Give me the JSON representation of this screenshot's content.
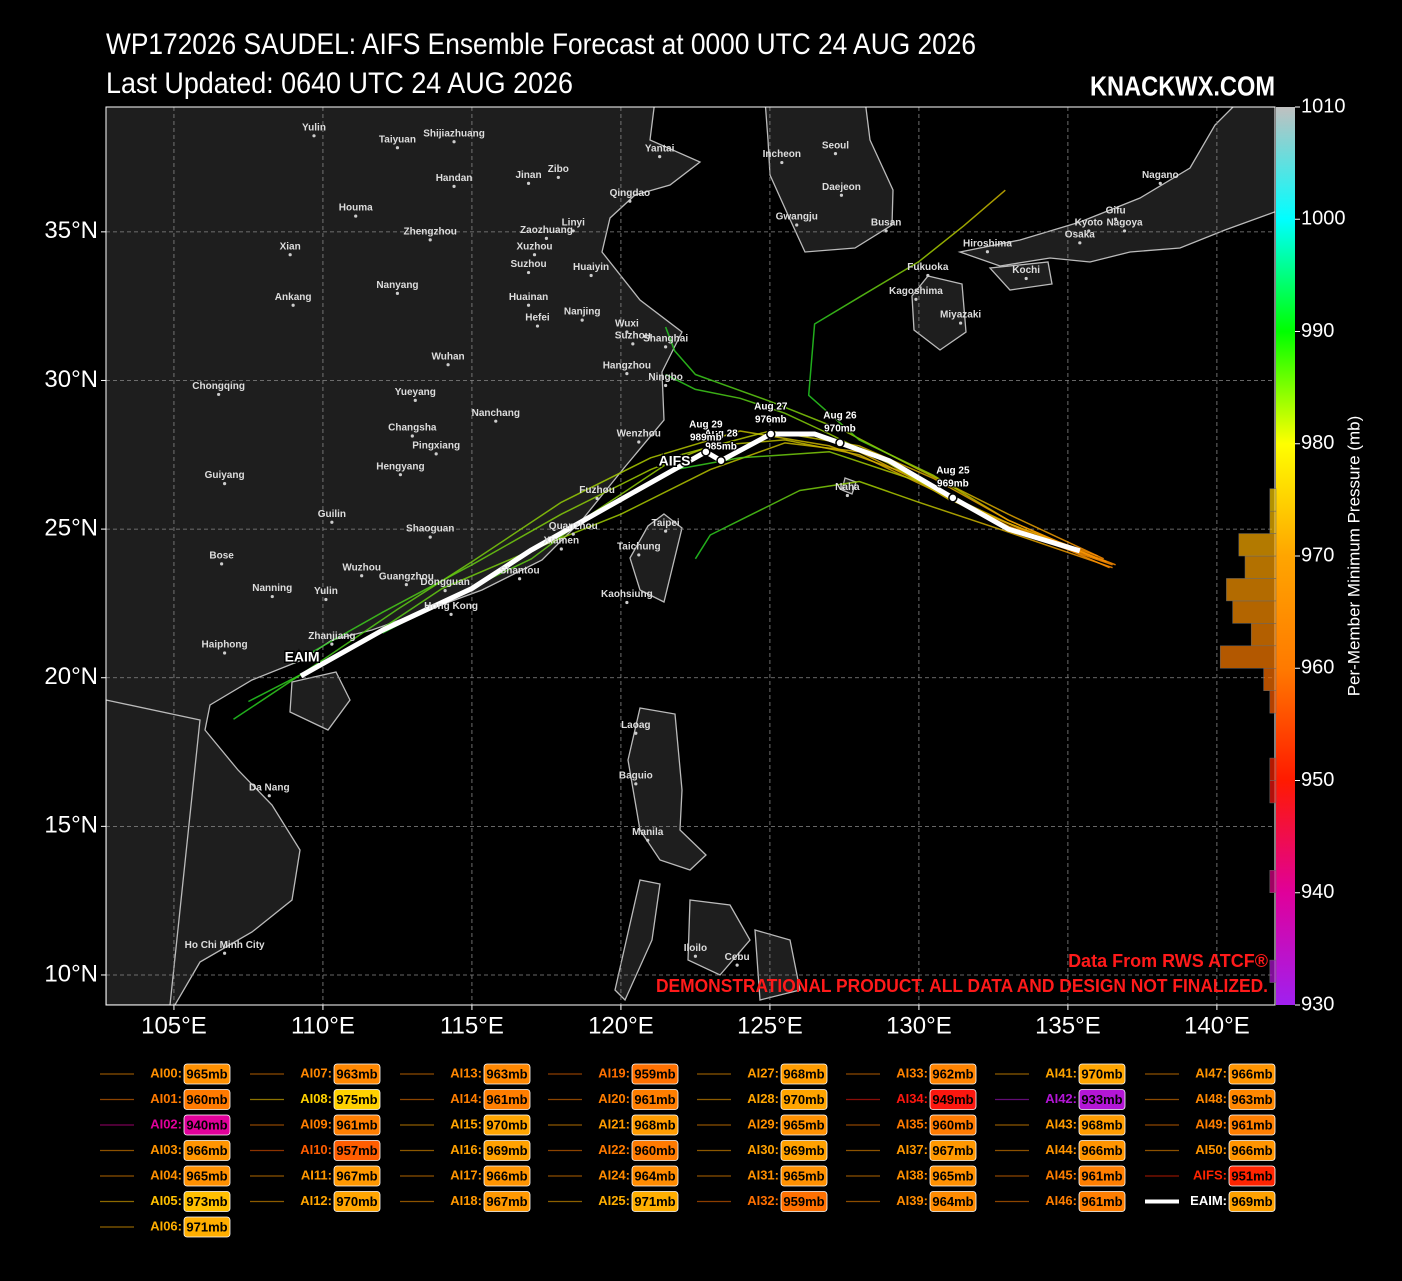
{
  "title": "WP172026 SAUDEL: AIFS Ensemble Forecast at 0000 UTC 24 AUG 2026",
  "subtitle": "Last Updated: 0640 UTC 24 AUG 2026",
  "brand": "KNACKWX.COM",
  "chart_data": {
    "type": "track-map",
    "xlim": [
      102.72,
      141.95
    ],
    "ylim": [
      8.99,
      39.2
    ],
    "xticks": [
      {
        "value": 105,
        "label": "105°E"
      },
      {
        "value": 110,
        "label": "110°E"
      },
      {
        "value": 115,
        "label": "115°E"
      },
      {
        "value": 120,
        "label": "120°E"
      },
      {
        "value": 125,
        "label": "125°E"
      },
      {
        "value": 130,
        "label": "130°E"
      },
      {
        "value": 135,
        "label": "135°E"
      },
      {
        "value": 140,
        "label": "140°E"
      }
    ],
    "yticks": [
      {
        "value": 10,
        "label": "10°N"
      },
      {
        "value": 15,
        "label": "15°N"
      },
      {
        "value": 20,
        "label": "20°N"
      },
      {
        "value": 25,
        "label": "25°N"
      },
      {
        "value": 30,
        "label": "30°N"
      },
      {
        "value": 35,
        "label": "35°N"
      }
    ],
    "grid": true,
    "cities": [
      {
        "name": "Yulin",
        "lon": 109.7,
        "lat": 38.5
      },
      {
        "name": "Taiyuan",
        "lon": 112.5,
        "lat": 38.1
      },
      {
        "name": "Shijiazhuang",
        "lon": 114.4,
        "lat": 38.3
      },
      {
        "name": "Yantai",
        "lon": 121.3,
        "lat": 37.8
      },
      {
        "name": "Handan",
        "lon": 114.4,
        "lat": 36.8
      },
      {
        "name": "Jinan",
        "lon": 116.9,
        "lat": 36.9
      },
      {
        "name": "Zibo",
        "lon": 117.9,
        "lat": 37.1
      },
      {
        "name": "Qingdao",
        "lon": 120.3,
        "lat": 36.3
      },
      {
        "name": "Seoul",
        "lon": 127.2,
        "lat": 37.9
      },
      {
        "name": "Incheon",
        "lon": 125.4,
        "lat": 37.6
      },
      {
        "name": "Daejeon",
        "lon": 127.4,
        "lat": 36.5
      },
      {
        "name": "Gwangju",
        "lon": 125.9,
        "lat": 35.5
      },
      {
        "name": "Busan",
        "lon": 128.9,
        "lat": 35.3
      },
      {
        "name": "Houma",
        "lon": 111.1,
        "lat": 35.8
      },
      {
        "name": "Xian",
        "lon": 108.9,
        "lat": 34.5
      },
      {
        "name": "Zhengzhou",
        "lon": 113.6,
        "lat": 35.0
      },
      {
        "name": "Zaozhuang",
        "lon": 117.5,
        "lat": 35.05
      },
      {
        "name": "Xuzhou",
        "lon": 117.1,
        "lat": 34.5
      },
      {
        "name": "Linyi",
        "lon": 118.4,
        "lat": 35.3
      },
      {
        "name": "Huaiyin",
        "lon": 119.0,
        "lat": 33.8
      },
      {
        "name": "Suzhou",
        "lon": 116.9,
        "lat": 33.9
      },
      {
        "name": "Nanyang",
        "lon": 112.5,
        "lat": 33.2
      },
      {
        "name": "Ankang",
        "lon": 109.0,
        "lat": 32.8
      },
      {
        "name": "Huainan",
        "lon": 116.9,
        "lat": 32.8
      },
      {
        "name": "Hefei",
        "lon": 117.2,
        "lat": 32.1
      },
      {
        "name": "Nanjing",
        "lon": 118.7,
        "lat": 32.3
      },
      {
        "name": "Wuxi",
        "lon": 120.2,
        "lat": 31.9
      },
      {
        "name": "Suzhou",
        "lon": 120.4,
        "lat": 31.5
      },
      {
        "name": "Shanghai",
        "lon": 121.5,
        "lat": 31.4
      },
      {
        "name": "Wuhan",
        "lon": 114.2,
        "lat": 30.8
      },
      {
        "name": "Hangzhou",
        "lon": 120.2,
        "lat": 30.5
      },
      {
        "name": "Ningbo",
        "lon": 121.5,
        "lat": 30.1
      },
      {
        "name": "Chongqing",
        "lon": 106.5,
        "lat": 29.8
      },
      {
        "name": "Yueyang",
        "lon": 113.1,
        "lat": 29.6
      },
      {
        "name": "Nanchang",
        "lon": 115.8,
        "lat": 28.9
      },
      {
        "name": "Changsha",
        "lon": 113.0,
        "lat": 28.4
      },
      {
        "name": "Pingxiang",
        "lon": 113.8,
        "lat": 27.8
      },
      {
        "name": "Wenzhou",
        "lon": 120.6,
        "lat": 28.2
      },
      {
        "name": "Hengyang",
        "lon": 112.6,
        "lat": 27.1
      },
      {
        "name": "Guiyang",
        "lon": 106.7,
        "lat": 26.8
      },
      {
        "name": "Fuzhou",
        "lon": 119.2,
        "lat": 26.3
      },
      {
        "name": "Naha",
        "lon": 127.6,
        "lat": 26.4
      },
      {
        "name": "Guilin",
        "lon": 110.3,
        "lat": 25.5
      },
      {
        "name": "Taipei",
        "lon": 121.5,
        "lat": 25.2
      },
      {
        "name": "Shaoguan",
        "lon": 113.6,
        "lat": 25.0
      },
      {
        "name": "Quanzhou",
        "lon": 118.4,
        "lat": 25.1
      },
      {
        "name": "Xiamen",
        "lon": 118.0,
        "lat": 24.6
      },
      {
        "name": "Taichung",
        "lon": 120.6,
        "lat": 24.4
      },
      {
        "name": "Bose",
        "lon": 106.6,
        "lat": 24.1
      },
      {
        "name": "Wuzhou",
        "lon": 111.3,
        "lat": 23.7
      },
      {
        "name": "Guangzhou",
        "lon": 112.8,
        "lat": 23.4
      },
      {
        "name": "Shantou",
        "lon": 116.6,
        "lat": 23.6
      },
      {
        "name": "Dongguan",
        "lon": 114.1,
        "lat": 23.2
      },
      {
        "name": "Hong Kong",
        "lon": 114.3,
        "lat": 22.4
      },
      {
        "name": "Nanning",
        "lon": 108.3,
        "lat": 23.0
      },
      {
        "name": "Yulin",
        "lon": 110.1,
        "lat": 22.9
      },
      {
        "name": "Kaohsiung",
        "lon": 120.2,
        "lat": 22.8
      },
      {
        "name": "Zhanjiang",
        "lon": 110.3,
        "lat": 21.4
      },
      {
        "name": "Haiphong",
        "lon": 106.7,
        "lat": 21.1
      },
      {
        "name": "Da Nang",
        "lon": 108.2,
        "lat": 16.3
      },
      {
        "name": "Laoag",
        "lon": 120.5,
        "lat": 18.4
      },
      {
        "name": "Baguio",
        "lon": 120.5,
        "lat": 16.7
      },
      {
        "name": "Manila",
        "lon": 120.9,
        "lat": 14.8
      },
      {
        "name": "Ho Chi Minh City",
        "lon": 106.7,
        "lat": 11.0
      },
      {
        "name": "Iloilo",
        "lon": 122.5,
        "lat": 10.9
      },
      {
        "name": "Cebu",
        "lon": 123.9,
        "lat": 10.6
      },
      {
        "name": "Fukuoka",
        "lon": 130.3,
        "lat": 33.8
      },
      {
        "name": "Kagoshima",
        "lon": 129.9,
        "lat": 33.0
      },
      {
        "name": "Miyazaki",
        "lon": 131.4,
        "lat": 32.2
      },
      {
        "name": "Hiroshima",
        "lon": 132.3,
        "lat": 34.6
      },
      {
        "name": "Kochi",
        "lon": 133.6,
        "lat": 33.7
      },
      {
        "name": "Osaka",
        "lon": 135.4,
        "lat": 34.9
      },
      {
        "name": "Kyoto",
        "lon": 135.7,
        "lat": 35.3
      },
      {
        "name": "Gifu",
        "lon": 136.6,
        "lat": 35.7
      },
      {
        "name": "Nagoya",
        "lon": 136.9,
        "lat": 35.3
      },
      {
        "name": "Nagano",
        "lon": 138.1,
        "lat": 36.9
      }
    ],
    "track_labels": [
      {
        "text": "EAIM",
        "lon": 109.3,
        "lat": 20.4
      },
      {
        "text": "AIFS",
        "lon": 121.8,
        "lat": 27.0
      }
    ],
    "eaim_points": [
      {
        "date": "Aug 25",
        "pressure": 969,
        "pressure_label": "969mb",
        "lon": 131.14,
        "lat": 26.05
      },
      {
        "date": "Aug 26",
        "pressure": 970,
        "pressure_label": "970mb",
        "lon": 127.35,
        "lat": 27.9
      },
      {
        "date": "Aug 27",
        "pressure": 976,
        "pressure_label": "976mb",
        "lon": 125.03,
        "lat": 28.2
      },
      {
        "date": "Aug 28",
        "pressure": 985,
        "pressure_label": "985mb",
        "lon": 123.36,
        "lat": 27.3
      },
      {
        "date": "Aug 29",
        "pressure": 989,
        "pressure_label": "989mb",
        "lon": 122.85,
        "lat": 27.6
      }
    ],
    "colorbar": {
      "label": "Per-Member Minimum Pressure (mb)",
      "lim": [
        930,
        1010
      ],
      "ticks": [
        930,
        940,
        950,
        960,
        970,
        980,
        990,
        1000,
        1010
      ],
      "stops": [
        [
          930,
          "#a020f0"
        ],
        [
          940,
          "#e0009a"
        ],
        [
          950,
          "#ff1a00"
        ],
        [
          960,
          "#ff7a00"
        ],
        [
          970,
          "#ffa500"
        ],
        [
          980,
          "#ffff00"
        ],
        [
          990,
          "#00ff00"
        ],
        [
          1000,
          "#00ffff"
        ],
        [
          1010,
          "#c0c0c0"
        ]
      ]
    },
    "histogram": {
      "bins": [
        932,
        934,
        936,
        938,
        940,
        942,
        944,
        946,
        948,
        950,
        952,
        954,
        956,
        958,
        960,
        962,
        964,
        966,
        968,
        970,
        972,
        974,
        976
      ],
      "counts": [
        1,
        0,
        0,
        0,
        1,
        0,
        0,
        0,
        1,
        1,
        0,
        0,
        1,
        2,
        9,
        4,
        7,
        8,
        5,
        6,
        1,
        1
      ]
    },
    "members": [
      {
        "name": "AI00:",
        "value": 965,
        "value_label": "965mb",
        "lon": [
          136.5,
          133,
          130.5,
          128,
          125.5,
          123,
          121,
          118,
          115,
          112,
          109
        ],
        "lat": [
          23.8,
          25,
          26.3,
          27.5,
          28.0,
          27.8,
          27.0,
          25.5,
          23.8,
          22.2,
          20.5
        ]
      },
      {
        "name": "AI01:",
        "value": 960,
        "value_label": "960mb"
      },
      {
        "name": "AI02:",
        "value": 940,
        "value_label": "940mb"
      },
      {
        "name": "AI03:",
        "value": 966,
        "value_label": "966mb"
      },
      {
        "name": "AI04:",
        "value": 965,
        "value_label": "965mb"
      },
      {
        "name": "AI05:",
        "value": 973,
        "value_label": "973mb",
        "lon": [
          136.2,
          133,
          130,
          127.5,
          125,
          122.5,
          121.8,
          121.5
        ],
        "lat": [
          24,
          25.5,
          27,
          28.3,
          29.3,
          30.2,
          31,
          31.8
        ]
      },
      {
        "name": "AI06:",
        "value": 971,
        "value_label": "971mb"
      },
      {
        "name": "AI07:",
        "value": 963,
        "value_label": "963mb"
      },
      {
        "name": "AI08:",
        "value": 975,
        "value_label": "975mb",
        "lon": [
          136,
          133,
          130.5,
          128,
          126.3,
          126.5,
          128,
          130,
          131.5,
          132.9
        ],
        "lat": [
          24,
          25.3,
          26.8,
          28,
          29.5,
          31.9,
          32.8,
          34.0,
          35.2,
          36.4
        ]
      },
      {
        "name": "AI09:",
        "value": 961,
        "value_label": "961mb"
      },
      {
        "name": "AI10:",
        "value": 957,
        "value_label": "957mb"
      },
      {
        "name": "AI11:",
        "value": 967,
        "value_label": "967mb"
      },
      {
        "name": "AI12:",
        "value": 970,
        "value_label": "970mb",
        "lon": [
          136.3,
          133,
          130,
          128,
          125.5,
          123,
          120,
          117.5,
          114,
          111,
          107.5
        ],
        "lat": [
          23.9,
          25.1,
          26.6,
          27.6,
          27.9,
          27.0,
          25.5,
          24.5,
          23.0,
          21.0,
          19.2
        ]
      },
      {
        "name": "AI13:",
        "value": 963,
        "value_label": "963mb"
      },
      {
        "name": "AI14:",
        "value": 961,
        "value_label": "961mb"
      },
      {
        "name": "AI15:",
        "value": 970,
        "value_label": "970mb"
      },
      {
        "name": "AI16:",
        "value": 969,
        "value_label": "969mb",
        "lon": [
          136.4,
          132.5,
          129.5,
          127,
          124,
          121,
          118,
          115,
          112.5,
          110,
          107
        ],
        "lat": [
          23.7,
          25.4,
          26.9,
          27.8,
          28.3,
          27.4,
          25.9,
          23.9,
          22.3,
          20.6,
          18.6
        ]
      },
      {
        "name": "AI17:",
        "value": 966,
        "value_label": "966mb"
      },
      {
        "name": "AI18:",
        "value": 967,
        "value_label": "967mb"
      },
      {
        "name": "AI19:",
        "value": 959,
        "value_label": "959mb"
      },
      {
        "name": "AI20:",
        "value": 961,
        "value_label": "961mb"
      },
      {
        "name": "AI21:",
        "value": 968,
        "value_label": "968mb"
      },
      {
        "name": "AI22:",
        "value": 960,
        "value_label": "960mb",
        "lon": [
          136,
          133.5,
          131,
          129,
          127,
          125.5,
          124,
          122.5,
          121.5
        ],
        "lat": [
          24.1,
          25,
          26,
          27.2,
          28.2,
          28.9,
          29.4,
          29.7,
          30.2
        ]
      },
      {
        "name": "AI24:",
        "value": 964,
        "value_label": "964mb"
      },
      {
        "name": "AI25:",
        "value": 971,
        "value_label": "971mb"
      },
      {
        "name": "AI27:",
        "value": 968,
        "value_label": "968mb"
      },
      {
        "name": "AI28:",
        "value": 970,
        "value_label": "970mb"
      },
      {
        "name": "AI29:",
        "value": 965,
        "value_label": "965mb",
        "lon": [
          136.5,
          133,
          130,
          128,
          126,
          124.2,
          123,
          122.5
        ],
        "lat": [
          23.7,
          24.9,
          25.9,
          26.6,
          26.3,
          25.4,
          24.8,
          24.0
        ]
      },
      {
        "name": "AI30:",
        "value": 969,
        "value_label": "969mb"
      },
      {
        "name": "AI31:",
        "value": 965,
        "value_label": "965mb"
      },
      {
        "name": "AI32:",
        "value": 959,
        "value_label": "959mb"
      },
      {
        "name": "AI33:",
        "value": 962,
        "value_label": "962mb"
      },
      {
        "name": "AI34:",
        "value": 949,
        "value_label": "949mb"
      },
      {
        "name": "AI35:",
        "value": 960,
        "value_label": "960mb"
      },
      {
        "name": "AI37:",
        "value": 967,
        "value_label": "967mb"
      },
      {
        "name": "AI38:",
        "value": 965,
        "value_label": "965mb"
      },
      {
        "name": "AI39:",
        "value": 964,
        "value_label": "964mb"
      },
      {
        "name": "AI41:",
        "value": 970,
        "value_label": "970mb",
        "lon": [
          136,
          133,
          130.5,
          128,
          125,
          122,
          119,
          117,
          114.5,
          112
        ],
        "lat": [
          24,
          25.3,
          26.7,
          27.8,
          28.3,
          27.5,
          25.5,
          24.0,
          22.8,
          21.5
        ]
      },
      {
        "name": "AI42:",
        "value": 933,
        "value_label": "933mb"
      },
      {
        "name": "AI43:",
        "value": 968,
        "value_label": "968mb"
      },
      {
        "name": "AI44:",
        "value": 966,
        "value_label": "966mb"
      },
      {
        "name": "AI45:",
        "value": 961,
        "value_label": "961mb"
      },
      {
        "name": "AI46:",
        "value": 961,
        "value_label": "961mb"
      },
      {
        "name": "AI47:",
        "value": 966,
        "value_label": "966mb"
      },
      {
        "name": "AI48:",
        "value": 963,
        "value_label": "963mb"
      },
      {
        "name": "AI49:",
        "value": 961,
        "value_label": "961mb"
      },
      {
        "name": "AI50:",
        "value": 966,
        "value_label": "966mb"
      },
      {
        "name": "AIFS:",
        "value": 951,
        "value_label": "951mb",
        "lon": [
          136.6,
          133,
          130,
          127,
          124,
          121.8
        ],
        "lat": [
          23.8,
          25.2,
          26.6,
          27.6,
          27.4,
          27.0
        ]
      },
      {
        "name": "EAIM:",
        "value": 969,
        "value_label": "969mb",
        "color": "#ffffff",
        "lon": [
          135.4,
          133,
          131.14,
          129,
          127.35,
          126.5,
          125.03,
          123.36,
          122.85,
          120,
          117,
          115,
          112,
          109.26
        ],
        "lat": [
          24.27,
          25.0,
          26.05,
          27.3,
          27.9,
          28.2,
          28.2,
          27.3,
          27.6,
          26.0,
          24.3,
          23.0,
          21.6,
          20.06
        ]
      }
    ],
    "annotations": [
      "Data From RWS ATCF®",
      "DEMONSTRATIONAL PRODUCT. ALL DATA AND DESIGN NOT FINALIZED."
    ]
  }
}
